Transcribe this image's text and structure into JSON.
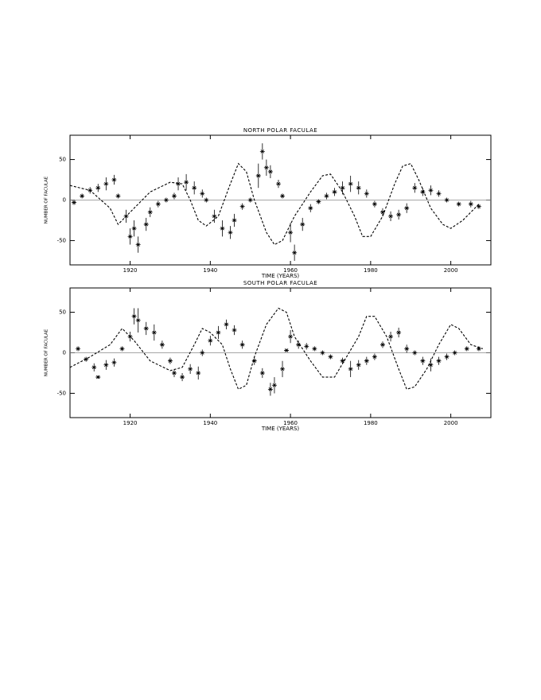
{
  "chart_data": [
    {
      "type": "scatter",
      "title": "NORTH POLAR FACULAE",
      "x_label": "TIME (YEARS)",
      "y_label": "NUMBER OF FACULAE",
      "xlim": [
        1905,
        2010
      ],
      "ylim": [
        -80,
        80
      ],
      "xticks": [
        1920,
        1940,
        1960,
        1980,
        2000
      ],
      "yticks": [
        -50,
        0,
        50
      ],
      "hline": 0,
      "x": [
        1906,
        1908,
        1910,
        1912,
        1914,
        1916,
        1917,
        1919,
        1920,
        1921,
        1922,
        1924,
        1925,
        1927,
        1929,
        1931,
        1932,
        1934,
        1936,
        1938,
        1939,
        1941,
        1943,
        1945,
        1946,
        1948,
        1950,
        1952,
        1953,
        1954,
        1955,
        1957,
        1958,
        1960,
        1961,
        1963,
        1965,
        1967,
        1969,
        1971,
        1973,
        1975,
        1977,
        1979,
        1981,
        1983,
        1985,
        1987,
        1989,
        1991,
        1993,
        1995,
        1997,
        1999,
        2002,
        2005,
        2007
      ],
      "values": [
        -3,
        5,
        12,
        15,
        20,
        25,
        5,
        -20,
        -45,
        -35,
        -55,
        -30,
        -15,
        -5,
        0,
        5,
        20,
        22,
        15,
        8,
        0,
        -20,
        -35,
        -40,
        -25,
        -8,
        0,
        30,
        60,
        40,
        35,
        20,
        5,
        -40,
        -65,
        -30,
        -10,
        -2,
        5,
        10,
        15,
        20,
        15,
        8,
        -5,
        -15,
        -20,
        -18,
        -10,
        15,
        10,
        12,
        8,
        0,
        -5,
        -5,
        -8
      ],
      "errors": [
        3,
        3,
        4,
        5,
        8,
        6,
        3,
        8,
        10,
        10,
        10,
        8,
        6,
        4,
        3,
        4,
        8,
        10,
        8,
        5,
        3,
        8,
        10,
        8,
        8,
        4,
        3,
        15,
        10,
        10,
        8,
        5,
        3,
        12,
        10,
        8,
        5,
        3,
        4,
        5,
        8,
        10,
        8,
        5,
        4,
        5,
        6,
        6,
        6,
        6,
        5,
        6,
        4,
        3,
        3,
        4,
        3
      ],
      "curve_x": [
        1905,
        1910,
        1915,
        1917,
        1920,
        1925,
        1930,
        1933,
        1935,
        1937,
        1939,
        1942,
        1945,
        1947,
        1949,
        1951,
        1954,
        1956,
        1958,
        1961,
        1965,
        1968,
        1970,
        1973,
        1976,
        1978,
        1980,
        1983,
        1986,
        1988,
        1990,
        1992,
        1995,
        1998,
        2000,
        2003,
        2007
      ],
      "curve_values": [
        18,
        12,
        -10,
        -30,
        -15,
        10,
        22,
        20,
        0,
        -25,
        -32,
        -20,
        20,
        45,
        35,
        0,
        -40,
        -55,
        -50,
        -20,
        10,
        30,
        32,
        10,
        -20,
        -45,
        -45,
        -20,
        20,
        42,
        45,
        25,
        -10,
        -30,
        -35,
        -25,
        -5
      ]
    },
    {
      "type": "scatter",
      "title": "SOUTH POLAR FACULAE",
      "x_label": "TIME (YEARS)",
      "y_label": "NUMBER OF FACULAE",
      "xlim": [
        1905,
        2010
      ],
      "ylim": [
        -80,
        80
      ],
      "xticks": [
        1920,
        1940,
        1960,
        1980,
        2000
      ],
      "yticks": [
        -50,
        0,
        50
      ],
      "hline": 0,
      "x": [
        1907,
        1909,
        1911,
        1912,
        1914,
        1916,
        1918,
        1920,
        1921,
        1922,
        1924,
        1926,
        1928,
        1930,
        1931,
        1933,
        1935,
        1937,
        1938,
        1940,
        1942,
        1944,
        1946,
        1948,
        1951,
        1953,
        1955,
        1956,
        1958,
        1959,
        1960,
        1962,
        1964,
        1966,
        1968,
        1970,
        1973,
        1975,
        1977,
        1979,
        1981,
        1983,
        1985,
        1987,
        1989,
        1991,
        1993,
        1995,
        1997,
        1999,
        2001,
        2004,
        2007
      ],
      "values": [
        5,
        -8,
        -18,
        -30,
        -15,
        -12,
        5,
        20,
        45,
        40,
        30,
        25,
        10,
        -10,
        -25,
        -30,
        -20,
        -25,
        0,
        15,
        25,
        35,
        28,
        10,
        -10,
        -25,
        -45,
        -40,
        -20,
        3,
        20,
        10,
        8,
        5,
        0,
        -5,
        -10,
        -20,
        -15,
        -10,
        -5,
        10,
        20,
        25,
        5,
        0,
        -10,
        -15,
        -10,
        -5,
        0,
        5,
        5
      ],
      "errors": [
        3,
        3,
        5,
        2,
        6,
        5,
        3,
        6,
        10,
        15,
        8,
        10,
        5,
        4,
        5,
        5,
        6,
        8,
        4,
        6,
        8,
        6,
        6,
        5,
        5,
        6,
        8,
        10,
        10,
        2,
        8,
        5,
        4,
        3,
        3,
        3,
        4,
        10,
        6,
        5,
        4,
        4,
        6,
        6,
        5,
        3,
        5,
        8,
        5,
        4,
        3,
        3,
        3
      ],
      "curve_x": [
        1905,
        1910,
        1915,
        1918,
        1921,
        1925,
        1930,
        1933,
        1936,
        1938,
        1940,
        1943,
        1945,
        1947,
        1949,
        1951,
        1954,
        1957,
        1959,
        1961,
        1965,
        1968,
        1971,
        1974,
        1977,
        1979,
        1981,
        1984,
        1987,
        1989,
        1991,
        1994,
        1997,
        2000,
        2002,
        2005,
        2008
      ],
      "curve_values": [
        -18,
        -5,
        10,
        30,
        15,
        -10,
        -22,
        -18,
        10,
        30,
        25,
        10,
        -20,
        -45,
        -40,
        -5,
        35,
        55,
        50,
        20,
        -10,
        -30,
        -30,
        -5,
        20,
        45,
        45,
        20,
        -20,
        -45,
        -42,
        -20,
        10,
        35,
        30,
        10,
        5
      ]
    }
  ]
}
